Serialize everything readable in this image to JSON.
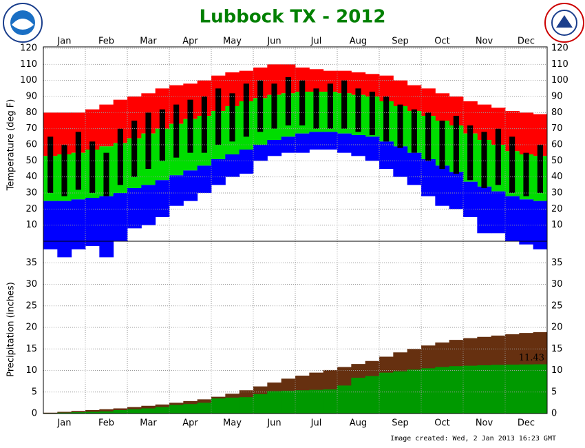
{
  "chart_data": [
    {
      "type": "range",
      "title": "Lubbock TX - 2012",
      "ylabel": "Temperature (deg F)",
      "categories": [
        null,
        "Jan",
        null,
        null,
        "Feb",
        null,
        null,
        "Mar",
        null,
        null,
        "Apr",
        null,
        null,
        "May",
        null,
        null,
        "Jun",
        null,
        null,
        "Jul",
        null,
        null,
        "Aug",
        null,
        null,
        "Sep",
        null,
        null,
        "Oct",
        null,
        null,
        "Nov",
        null,
        null,
        "Dec",
        null
      ],
      "ylim": [
        0,
        120
      ],
      "yticks": [
        10,
        20,
        30,
        40,
        50,
        60,
        70,
        80,
        90,
        100,
        110,
        120
      ],
      "grid": true,
      "series": [
        {
          "color": "#ff0000",
          "values": [
            80,
            80,
            80,
            82,
            85,
            88,
            90,
            92,
            95,
            97,
            98,
            100,
            103,
            105,
            106,
            108,
            110,
            110,
            108,
            107,
            106,
            106,
            105,
            104,
            103,
            100,
            97,
            95,
            92,
            90,
            87,
            85,
            83,
            81,
            80,
            79
          ]
        },
        {
          "color": "#00dd00",
          "values": [
            53,
            54,
            55,
            57,
            59,
            61,
            64,
            67,
            70,
            73,
            76,
            78,
            81,
            84,
            87,
            89,
            91,
            92,
            93,
            93,
            93,
            92,
            91,
            90,
            87,
            84,
            81,
            78,
            75,
            72,
            67,
            63,
            60,
            56,
            54,
            53
          ]
        },
        {
          "color": "#0000ff",
          "values": [
            25,
            25,
            26,
            27,
            28,
            30,
            33,
            35,
            38,
            41,
            44,
            47,
            51,
            54,
            57,
            60,
            63,
            65,
            67,
            68,
            68,
            67,
            66,
            65,
            62,
            59,
            55,
            51,
            47,
            43,
            37,
            34,
            31,
            28,
            26,
            25
          ]
        },
        {
          "color": "#0000ff",
          "values": [
            -5,
            -10,
            -5,
            -3,
            -10,
            0,
            8,
            10,
            15,
            22,
            25,
            30,
            35,
            40,
            42,
            50,
            53,
            55,
            55,
            57,
            57,
            55,
            53,
            50,
            45,
            40,
            35,
            28,
            22,
            20,
            15,
            5,
            5,
            0,
            -2,
            -5
          ]
        }
      ],
      "actual": {
        "color": "#000000",
        "high": [
          65,
          60,
          68,
          62,
          55,
          70,
          75,
          80,
          82,
          85,
          88,
          90,
          95,
          92,
          98,
          100,
          98,
          102,
          100,
          95,
          98,
          100,
          95,
          93,
          90,
          85,
          82,
          80,
          75,
          78,
          72,
          68,
          70,
          65,
          55,
          60
        ],
        "low": [
          30,
          28,
          32,
          30,
          28,
          35,
          40,
          45,
          50,
          52,
          55,
          55,
          60,
          62,
          65,
          68,
          70,
          72,
          72,
          70,
          70,
          70,
          68,
          66,
          62,
          58,
          55,
          50,
          45,
          42,
          38,
          33,
          35,
          30,
          28,
          30
        ]
      }
    },
    {
      "type": "area",
      "ylabel": "Precipitation (inches)",
      "ylim": [
        0,
        40
      ],
      "yticks": [
        0,
        5,
        10,
        15,
        20,
        25,
        30,
        35
      ],
      "grid": true,
      "series": [
        {
          "color": "#663010",
          "values": [
            0.2,
            0.4,
            0.6,
            0.8,
            1.0,
            1.2,
            1.5,
            1.8,
            2.1,
            2.5,
            2.9,
            3.3,
            3.9,
            4.6,
            5.4,
            6.3,
            7.2,
            8.1,
            8.8,
            9.5,
            10.1,
            10.8,
            11.5,
            12.2,
            13.2,
            14.2,
            15.0,
            15.8,
            16.5,
            17.1,
            17.5,
            17.8,
            18.1,
            18.4,
            18.7,
            18.9
          ]
        },
        {
          "color": "#009900",
          "values": [
            0.1,
            0.2,
            0.3,
            0.4,
            0.5,
            0.8,
            1.0,
            1.2,
            1.5,
            2.0,
            2.2,
            2.5,
            3.5,
            3.7,
            3.8,
            4.5,
            5.2,
            5.3,
            5.4,
            5.5,
            5.6,
            6.5,
            8.3,
            8.7,
            9.5,
            9.8,
            10.2,
            10.5,
            10.8,
            11.0,
            11.1,
            11.2,
            11.3,
            11.35,
            11.4,
            11.43
          ]
        }
      ]
    }
  ],
  "footer": "Image created: Wed, 2 Jan 2013 16:23 GMT"
}
